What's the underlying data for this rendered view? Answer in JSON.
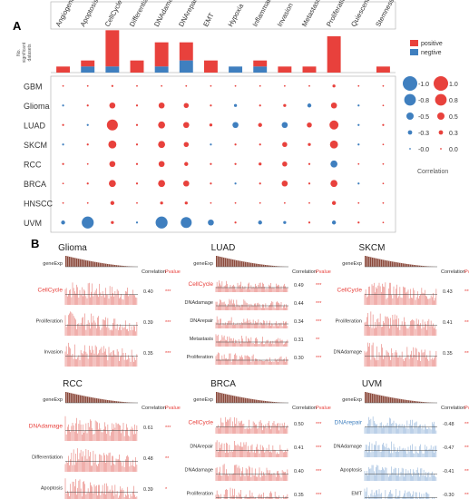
{
  "panel_a": {
    "label": "A",
    "columns": [
      "Angiogenesis",
      "Apoptosis",
      "CellCycle",
      "Differentiation",
      "DNAdamage",
      "DNArepair",
      "EMT",
      "Hypoxia",
      "Inflammation",
      "Invasion",
      "Metastasis",
      "Proliferation",
      "Quiescence",
      "Stemness"
    ],
    "rows": [
      "GBM",
      "Glioma",
      "LUAD",
      "SKCM",
      "RCC",
      "BRCA",
      "HNSCC",
      "UVM"
    ],
    "bar_ylabel_lines": [
      "No.",
      "significant",
      "datasets"
    ],
    "bar_legend": [
      {
        "name": "positive",
        "color": "#e8413c"
      },
      {
        "name": "negtive",
        "color": "#3f7fbf"
      }
    ],
    "bars": {
      "positive": [
        1,
        1,
        6,
        2,
        4,
        3,
        2,
        0,
        1,
        1,
        1,
        6,
        0,
        1
      ],
      "negative": [
        0,
        1,
        1,
        0,
        1,
        2,
        0,
        1,
        1,
        0,
        0,
        0,
        0,
        0
      ]
    },
    "size_legend": {
      "title": "Correlation",
      "negative_labels": [
        "-1.0",
        "-0.8",
        "-0.5",
        "-0.3",
        "-0.0"
      ],
      "positive_labels": [
        "1.0",
        "0.8",
        "0.5",
        "0.3",
        "0.0"
      ],
      "values": [
        1.0,
        0.8,
        0.5,
        0.3,
        0.0
      ]
    },
    "dots": [
      [
        0.05,
        0.05,
        0.1,
        0.05,
        0.05,
        0.05,
        0.05,
        0.05,
        0.05,
        0.05,
        0.05,
        0.15,
        0.05,
        0.05
      ],
      [
        -0.1,
        0.1,
        0.3,
        0.1,
        0.3,
        0.25,
        0.1,
        -0.15,
        0.1,
        0.15,
        -0.2,
        0.3,
        -0.1,
        0.05
      ],
      [
        0.1,
        -0.1,
        0.55,
        0.1,
        0.35,
        0.3,
        0.15,
        -0.3,
        0.2,
        -0.3,
        0.25,
        0.45,
        -0.1,
        0.1
      ],
      [
        -0.1,
        0.1,
        0.4,
        0.1,
        0.35,
        0.25,
        -0.1,
        0.1,
        0.1,
        0.25,
        0.15,
        0.4,
        -0.1,
        0.05
      ],
      [
        0.1,
        0.05,
        0.3,
        0.1,
        0.3,
        0.2,
        0.1,
        0.1,
        0.15,
        0.25,
        0.1,
        -0.35,
        0.05,
        0.05
      ],
      [
        0.05,
        0.1,
        0.35,
        0.1,
        0.35,
        0.3,
        0.1,
        -0.1,
        0.1,
        0.3,
        0.1,
        0.35,
        -0.1,
        0.05
      ],
      [
        0.05,
        0.05,
        0.2,
        0.05,
        0.15,
        0.15,
        0.05,
        0.05,
        0.05,
        0.05,
        0.05,
        0.2,
        0.05,
        0.05
      ],
      [
        -0.2,
        -0.6,
        0.15,
        -0.1,
        -0.6,
        -0.55,
        -0.3,
        0.1,
        -0.2,
        -0.15,
        0.1,
        -0.2,
        0.1,
        0.05
      ]
    ]
  },
  "panel_b": {
    "label": "B",
    "col_correlation": "Correlation",
    "col_pvalue": "Pvalue",
    "gene_label": "geneExp",
    "charts": [
      {
        "title": "Glioma",
        "highlight": "pos",
        "rows": [
          {
            "name": "CellCycle",
            "corr": "0.40",
            "p": "***"
          },
          {
            "name": "Proliferation",
            "corr": "0.39",
            "p": "***"
          },
          {
            "name": "Invasion",
            "corr": "0.35",
            "p": "***"
          }
        ]
      },
      {
        "title": "LUAD",
        "highlight": "pos",
        "rows": [
          {
            "name": "CellCycle",
            "corr": "0.49",
            "p": "***"
          },
          {
            "name": "DNAdamage",
            "corr": "0.44",
            "p": "***"
          },
          {
            "name": "DNArepair",
            "corr": "0.34",
            "p": "***"
          },
          {
            "name": "Metastasis",
            "corr": "0.31",
            "p": "**"
          },
          {
            "name": "Proliferation",
            "corr": "0.30",
            "p": "***"
          }
        ]
      },
      {
        "title": "SKCM",
        "highlight": "pos",
        "rows": [
          {
            "name": "CellCycle",
            "corr": "0.43",
            "p": "***"
          },
          {
            "name": "Proliferation",
            "corr": "0.41",
            "p": "***"
          },
          {
            "name": "DNAdamage",
            "corr": "0.35",
            "p": "***"
          }
        ]
      },
      {
        "title": "RCC",
        "highlight": "pos",
        "rows": [
          {
            "name": "DNAdamage",
            "corr": "0.61",
            "p": "***"
          },
          {
            "name": "Differentiation",
            "corr": "0.48",
            "p": "**"
          },
          {
            "name": "Apoptosis",
            "corr": "0.39",
            "p": "*"
          }
        ]
      },
      {
        "title": "BRCA",
        "highlight": "pos",
        "rows": [
          {
            "name": "CellCycle",
            "corr": "0.50",
            "p": "***"
          },
          {
            "name": "DNArepair",
            "corr": "0.41",
            "p": "***"
          },
          {
            "name": "DNAdamage",
            "corr": "0.40",
            "p": "***"
          },
          {
            "name": "Proliferation",
            "corr": "0.35",
            "p": "***"
          }
        ]
      },
      {
        "title": "UVM",
        "highlight": "neg",
        "rows": [
          {
            "name": "DNArepair",
            "corr": "-0.48",
            "p": "***"
          },
          {
            "name": "DNAdamage",
            "corr": "-0.47",
            "p": "***"
          },
          {
            "name": "Apoptosis",
            "corr": "-0.41",
            "p": "***"
          },
          {
            "name": "EMT",
            "corr": "-0.30",
            "p": "***"
          }
        ]
      }
    ]
  },
  "colors": {
    "positive": "#e8413c",
    "negative": "#3f7fbf",
    "gene": "#8b4a3c",
    "frame": "#aaaaaa"
  }
}
